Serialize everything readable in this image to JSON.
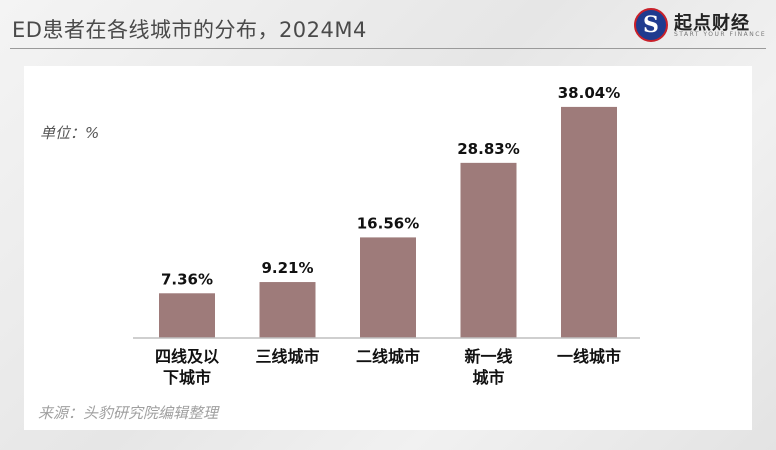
{
  "header": {
    "title": "ED患者在各线城市的分布，2024M4",
    "logo": {
      "mark": "S",
      "name": "起点财经",
      "tagline": "START YOUR FINANCE"
    }
  },
  "unit_label": "单位：%",
  "source": "来源：头豹研究院编辑整理",
  "colors": {
    "bar": "#9e7b7a",
    "axis": "#bfbfbf",
    "text": "#111111"
  },
  "chart_data": {
    "type": "bar",
    "title": "",
    "xlabel": "",
    "ylabel": "",
    "categories": [
      [
        "四线及以",
        "下城市"
      ],
      [
        "三线城市"
      ],
      [
        "二线城市"
      ],
      [
        "新一线",
        "城市"
      ],
      [
        "一线城市"
      ]
    ],
    "values": [
      7.36,
      9.21,
      16.56,
      28.83,
      38.04
    ],
    "data_labels": [
      "7.36%",
      "9.21%",
      "16.56%",
      "28.83%",
      "38.04%"
    ],
    "ylim": [
      0,
      40
    ],
    "grid": false,
    "legend": "none"
  }
}
